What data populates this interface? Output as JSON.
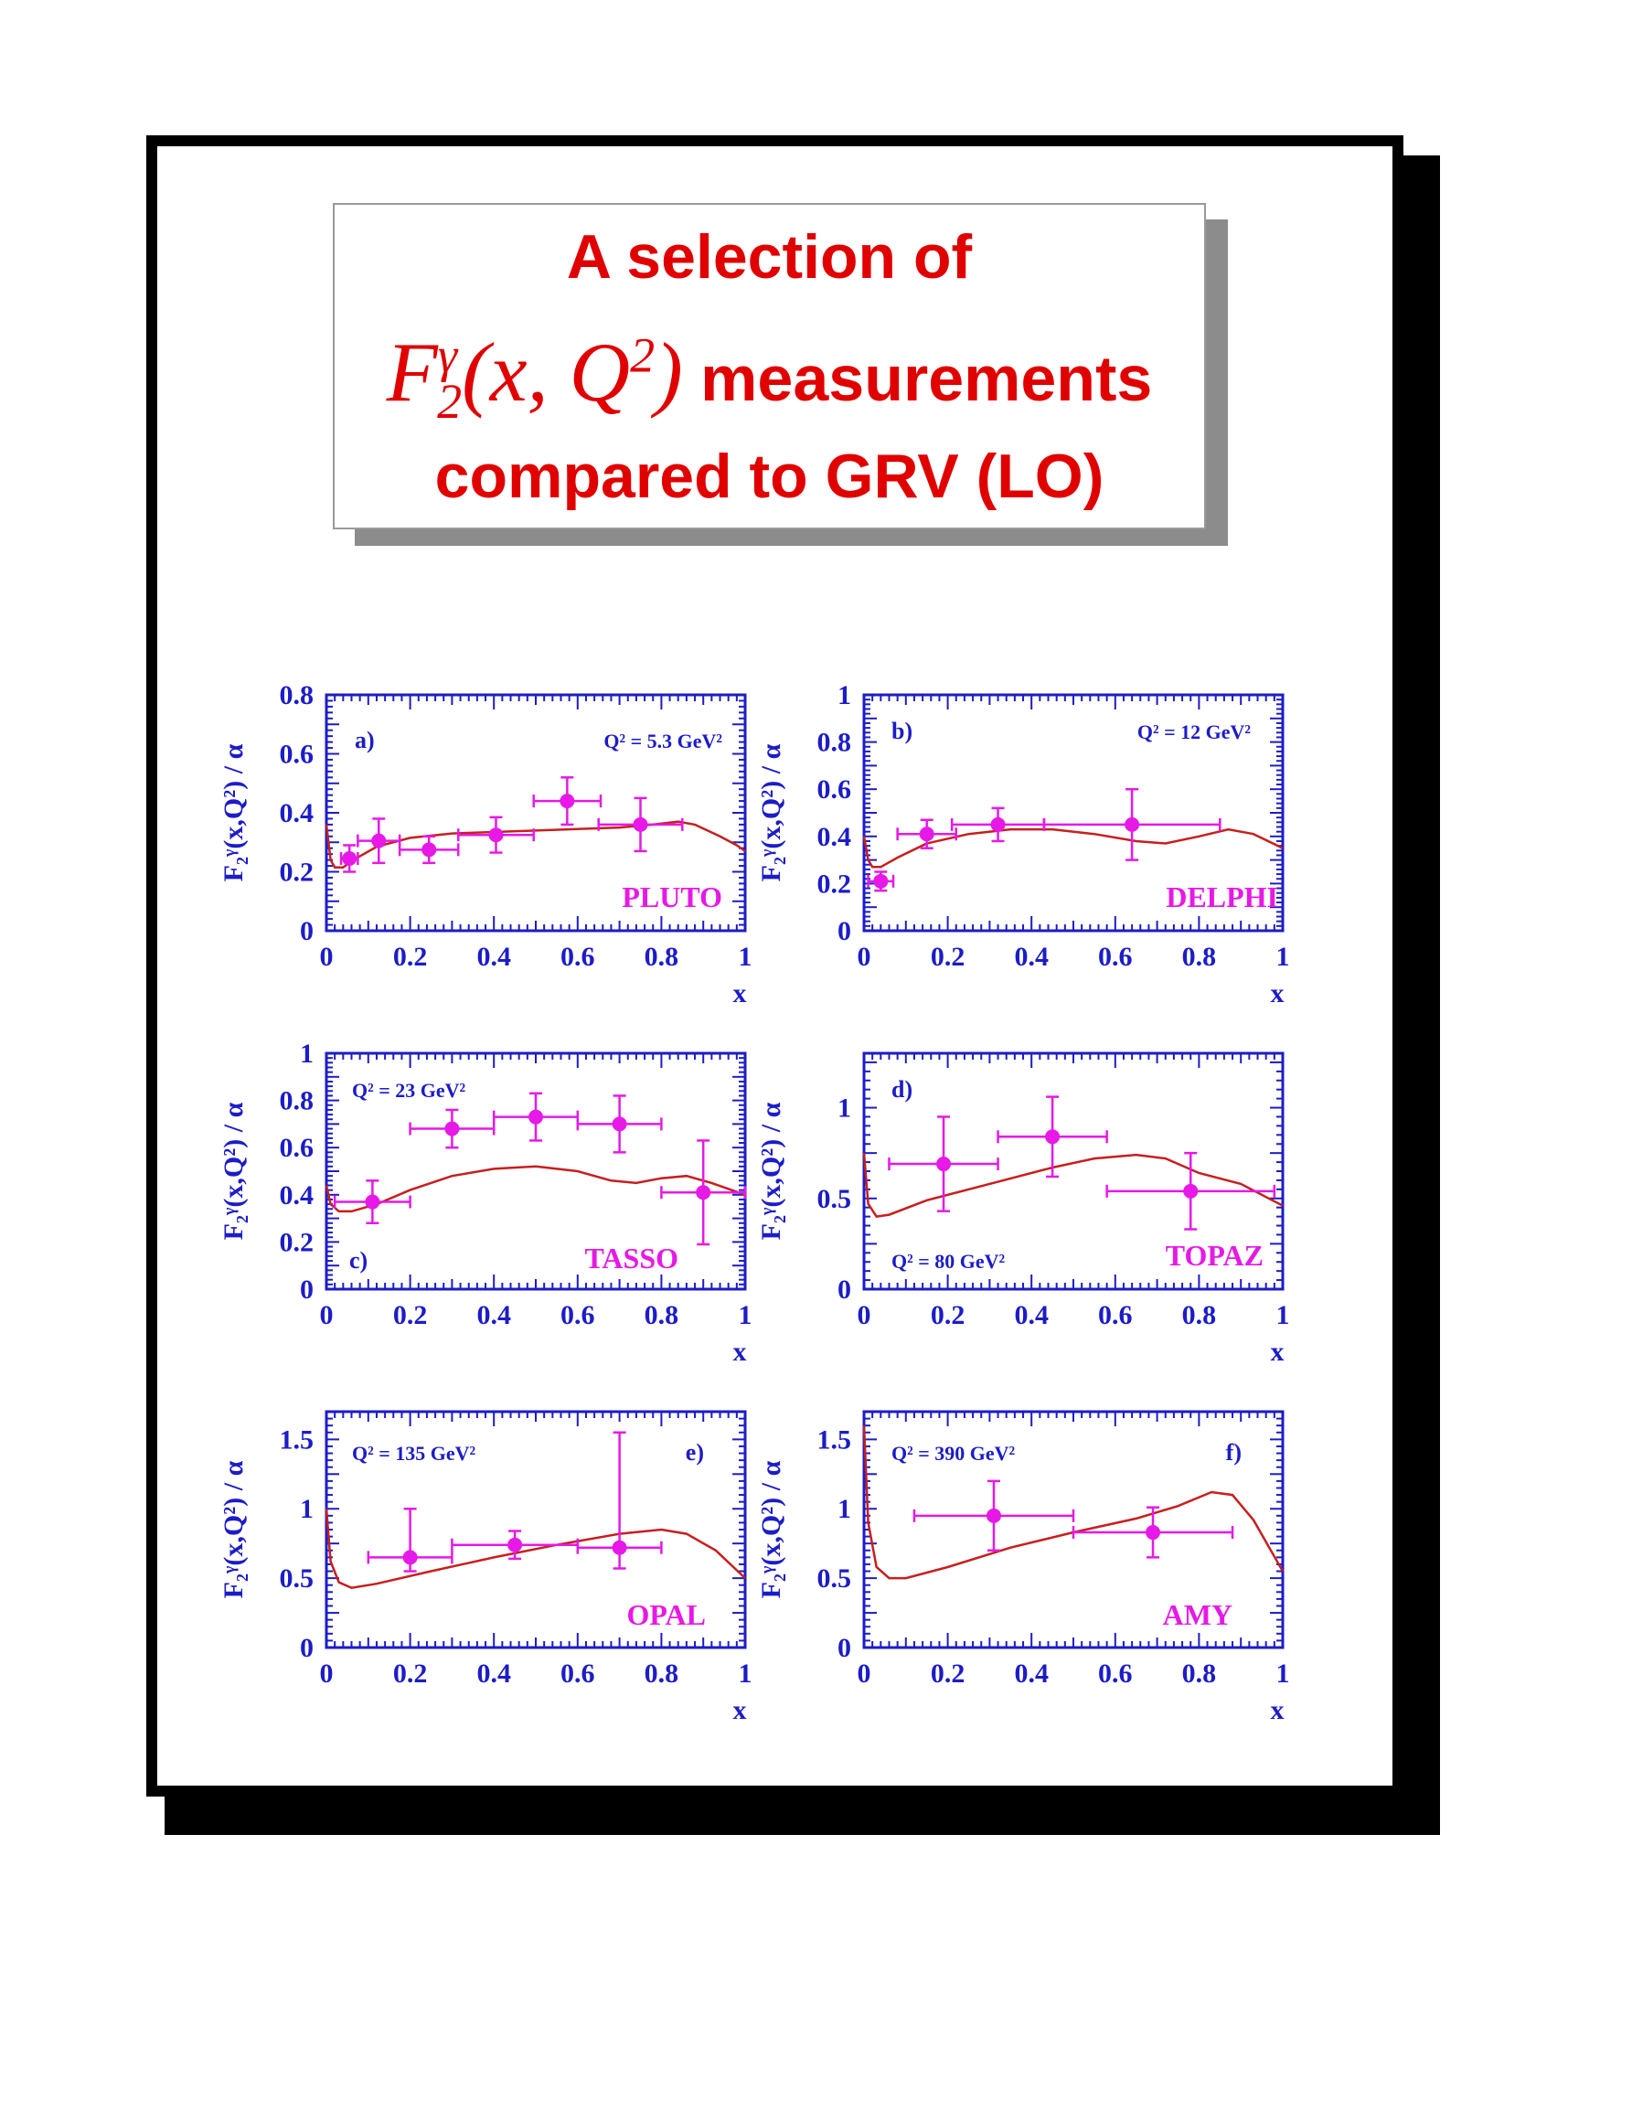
{
  "title": {
    "line1": "A selection of",
    "math_F": "F",
    "math_sub": "2",
    "math_sup": "γ",
    "math_args": "(x, Q",
    "math_args_sup": "2",
    "math_close": ")",
    "line2_text": "measurements",
    "line3": "compared to GRV (LO)"
  },
  "colors": {
    "axis": "#1c1cc8",
    "data": "#e619e6",
    "curve": "#c81e1e",
    "title": "#e00000"
  },
  "chart_data": [
    {
      "type": "scatter",
      "panel": "a)",
      "experiment": "PLUTO",
      "q2_label": "Q² = 5.3 GeV²",
      "xlabel": "x",
      "ylabel": "F₂ᵞ(x,Q²) / α",
      "xlim": [
        0,
        1
      ],
      "ylim": [
        0,
        0.8
      ],
      "yticks": [
        "0",
        "0.2",
        "0.4",
        "0.6",
        "0.8"
      ],
      "xticks": [
        "0",
        "0.2",
        "0.4",
        "0.6",
        "0.8",
        "1"
      ],
      "points": [
        {
          "x": 0.055,
          "y": 0.245,
          "xerr": [
            0.02,
            0.02
          ],
          "yerr": [
            0.045,
            0.045
          ]
        },
        {
          "x": 0.125,
          "y": 0.305,
          "xerr": [
            0.05,
            0.05
          ],
          "yerr": [
            0.075,
            0.075
          ]
        },
        {
          "x": 0.245,
          "y": 0.275,
          "xerr": [
            0.07,
            0.07
          ],
          "yerr": [
            0.045,
            0.045
          ]
        },
        {
          "x": 0.405,
          "y": 0.325,
          "xerr": [
            0.09,
            0.09
          ],
          "yerr": [
            0.06,
            0.06
          ]
        },
        {
          "x": 0.575,
          "y": 0.44,
          "xerr": [
            0.08,
            0.08
          ],
          "yerr": [
            0.08,
            0.08
          ]
        },
        {
          "x": 0.75,
          "y": 0.36,
          "xerr": [
            0.1,
            0.1
          ],
          "yerr": [
            0.09,
            0.09
          ]
        }
      ],
      "curve": [
        [
          0.0,
          0.36
        ],
        [
          0.01,
          0.24
        ],
        [
          0.02,
          0.215
        ],
        [
          0.04,
          0.215
        ],
        [
          0.07,
          0.245
        ],
        [
          0.12,
          0.285
        ],
        [
          0.2,
          0.315
        ],
        [
          0.3,
          0.33
        ],
        [
          0.4,
          0.335
        ],
        [
          0.5,
          0.34
        ],
        [
          0.6,
          0.345
        ],
        [
          0.7,
          0.35
        ],
        [
          0.78,
          0.36
        ],
        [
          0.84,
          0.37
        ],
        [
          0.88,
          0.36
        ],
        [
          0.94,
          0.32
        ],
        [
          0.98,
          0.29
        ],
        [
          1.0,
          0.27
        ]
      ]
    },
    {
      "type": "scatter",
      "panel": "b)",
      "experiment": "DELPHI",
      "q2_label": "Q² = 12 GeV²",
      "xlabel": "x",
      "ylabel": "F₂ᵞ(x,Q²) / α",
      "xlim": [
        0,
        1
      ],
      "ylim": [
        0,
        1
      ],
      "yticks": [
        "0",
        "0.2",
        "0.4",
        "0.6",
        "0.8",
        "1"
      ],
      "xticks": [
        "0",
        "0.2",
        "0.4",
        "0.6",
        "0.8",
        "1"
      ],
      "points": [
        {
          "x": 0.04,
          "y": 0.21,
          "xerr": [
            0.03,
            0.03
          ],
          "yerr": [
            0.04,
            0.04
          ]
        },
        {
          "x": 0.15,
          "y": 0.41,
          "xerr": [
            0.07,
            0.07
          ],
          "yerr": [
            0.06,
            0.06
          ]
        },
        {
          "x": 0.32,
          "y": 0.45,
          "xerr": [
            0.11,
            0.11
          ],
          "yerr": [
            0.07,
            0.07
          ]
        },
        {
          "x": 0.64,
          "y": 0.45,
          "xerr": [
            0.21,
            0.21
          ],
          "yerr": [
            0.15,
            0.15
          ]
        }
      ],
      "curve": [
        [
          0.0,
          0.4
        ],
        [
          0.01,
          0.3
        ],
        [
          0.02,
          0.27
        ],
        [
          0.04,
          0.27
        ],
        [
          0.08,
          0.31
        ],
        [
          0.15,
          0.37
        ],
        [
          0.25,
          0.41
        ],
        [
          0.35,
          0.43
        ],
        [
          0.45,
          0.43
        ],
        [
          0.55,
          0.41
        ],
        [
          0.65,
          0.38
        ],
        [
          0.72,
          0.37
        ],
        [
          0.8,
          0.4
        ],
        [
          0.87,
          0.43
        ],
        [
          0.93,
          0.41
        ],
        [
          1.0,
          0.35
        ]
      ]
    },
    {
      "type": "scatter",
      "panel": "c)",
      "experiment": "TASSO",
      "q2_label": "Q² = 23 GeV²",
      "xlabel": "x",
      "ylabel": "F₂ᵞ(x,Q²) / α",
      "xlim": [
        0,
        1
      ],
      "ylim": [
        0,
        1
      ],
      "yticks": [
        "0",
        "0.2",
        "0.4",
        "0.6",
        "0.8",
        "1"
      ],
      "xticks": [
        "0",
        "0.2",
        "0.4",
        "0.6",
        "0.8",
        "1"
      ],
      "points": [
        {
          "x": 0.11,
          "y": 0.37,
          "xerr": [
            0.09,
            0.09
          ],
          "yerr": [
            0.09,
            0.09
          ]
        },
        {
          "x": 0.3,
          "y": 0.68,
          "xerr": [
            0.1,
            0.1
          ],
          "yerr": [
            0.08,
            0.08
          ]
        },
        {
          "x": 0.5,
          "y": 0.73,
          "xerr": [
            0.1,
            0.1
          ],
          "yerr": [
            0.1,
            0.1
          ]
        },
        {
          "x": 0.7,
          "y": 0.7,
          "xerr": [
            0.1,
            0.1
          ],
          "yerr": [
            0.12,
            0.12
          ]
        },
        {
          "x": 0.9,
          "y": 0.41,
          "xerr": [
            0.1,
            0.1
          ],
          "yerr": [
            0.22,
            0.22
          ]
        }
      ],
      "curve": [
        [
          0.0,
          0.44
        ],
        [
          0.01,
          0.36
        ],
        [
          0.03,
          0.33
        ],
        [
          0.06,
          0.33
        ],
        [
          0.12,
          0.36
        ],
        [
          0.2,
          0.42
        ],
        [
          0.3,
          0.48
        ],
        [
          0.4,
          0.51
        ],
        [
          0.5,
          0.52
        ],
        [
          0.6,
          0.5
        ],
        [
          0.68,
          0.46
        ],
        [
          0.74,
          0.45
        ],
        [
          0.8,
          0.47
        ],
        [
          0.86,
          0.48
        ],
        [
          0.92,
          0.45
        ],
        [
          1.0,
          0.4
        ]
      ]
    },
    {
      "type": "scatter",
      "panel": "d)",
      "experiment": "TOPAZ",
      "q2_label": "Q² = 80 GeV²",
      "xlabel": "x",
      "ylabel": "F₂ᵞ(x,Q²) / α",
      "xlim": [
        0,
        1
      ],
      "ylim": [
        0,
        1.3
      ],
      "yticks": [
        "0",
        "0.5",
        "1"
      ],
      "xticks": [
        "0",
        "0.2",
        "0.4",
        "0.6",
        "0.8",
        "1"
      ],
      "points": [
        {
          "x": 0.19,
          "y": 0.69,
          "xerr": [
            0.13,
            0.13
          ],
          "yerr": [
            0.26,
            0.26
          ]
        },
        {
          "x": 0.45,
          "y": 0.84,
          "xerr": [
            0.13,
            0.13
          ],
          "yerr": [
            0.22,
            0.22
          ]
        },
        {
          "x": 0.78,
          "y": 0.54,
          "xerr": [
            0.2,
            0.2
          ],
          "yerr": [
            0.21,
            0.21
          ]
        }
      ],
      "curve": [
        [
          0.0,
          0.75
        ],
        [
          0.01,
          0.47
        ],
        [
          0.03,
          0.4
        ],
        [
          0.06,
          0.41
        ],
        [
          0.15,
          0.49
        ],
        [
          0.3,
          0.58
        ],
        [
          0.45,
          0.67
        ],
        [
          0.55,
          0.72
        ],
        [
          0.65,
          0.74
        ],
        [
          0.72,
          0.72
        ],
        [
          0.8,
          0.64
        ],
        [
          0.9,
          0.58
        ],
        [
          1.0,
          0.46
        ]
      ]
    },
    {
      "type": "scatter",
      "panel": "e)",
      "experiment": "OPAL",
      "q2_label": "Q² = 135 GeV²",
      "xlabel": "x",
      "ylabel": "F₂ᵞ(x,Q²) / α",
      "xlim": [
        0,
        1
      ],
      "ylim": [
        0,
        1.7
      ],
      "yticks": [
        "0",
        "0.5",
        "1",
        "1.5"
      ],
      "xticks": [
        "0",
        "0.2",
        "0.4",
        "0.6",
        "0.8",
        "1"
      ],
      "points": [
        {
          "x": 0.2,
          "y": 0.65,
          "xerr": [
            0.1,
            0.1
          ],
          "yerr": [
            0.1,
            0.35
          ]
        },
        {
          "x": 0.45,
          "y": 0.74,
          "xerr": [
            0.15,
            0.15
          ],
          "yerr": [
            0.1,
            0.1
          ]
        },
        {
          "x": 0.7,
          "y": 0.72,
          "xerr": [
            0.1,
            0.1
          ],
          "yerr": [
            0.15,
            0.83
          ]
        }
      ],
      "curve": [
        [
          0.0,
          1.0
        ],
        [
          0.01,
          0.62
        ],
        [
          0.03,
          0.47
        ],
        [
          0.06,
          0.43
        ],
        [
          0.12,
          0.46
        ],
        [
          0.25,
          0.55
        ],
        [
          0.4,
          0.65
        ],
        [
          0.55,
          0.74
        ],
        [
          0.7,
          0.82
        ],
        [
          0.8,
          0.85
        ],
        [
          0.86,
          0.82
        ],
        [
          0.93,
          0.7
        ],
        [
          1.0,
          0.5
        ]
      ]
    },
    {
      "type": "scatter",
      "panel": "f)",
      "experiment": "AMY",
      "q2_label": "Q² = 390 GeV²",
      "xlabel": "x",
      "ylabel": "F₂ᵞ(x,Q²) / α",
      "xlim": [
        0,
        1
      ],
      "ylim": [
        0,
        1.7
      ],
      "yticks": [
        "0",
        "0.5",
        "1",
        "1.5"
      ],
      "xticks": [
        "0",
        "0.2",
        "0.4",
        "0.6",
        "0.8",
        "1"
      ],
      "points": [
        {
          "x": 0.31,
          "y": 0.95,
          "xerr": [
            0.19,
            0.19
          ],
          "yerr": [
            0.25,
            0.25
          ]
        },
        {
          "x": 0.69,
          "y": 0.83,
          "xerr": [
            0.19,
            0.19
          ],
          "yerr": [
            0.18,
            0.18
          ]
        }
      ],
      "curve": [
        [
          0.0,
          1.6
        ],
        [
          0.01,
          0.9
        ],
        [
          0.03,
          0.58
        ],
        [
          0.06,
          0.5
        ],
        [
          0.1,
          0.5
        ],
        [
          0.2,
          0.58
        ],
        [
          0.35,
          0.72
        ],
        [
          0.5,
          0.83
        ],
        [
          0.65,
          0.93
        ],
        [
          0.75,
          1.02
        ],
        [
          0.83,
          1.12
        ],
        [
          0.88,
          1.1
        ],
        [
          0.93,
          0.92
        ],
        [
          1.0,
          0.55
        ]
      ]
    }
  ]
}
